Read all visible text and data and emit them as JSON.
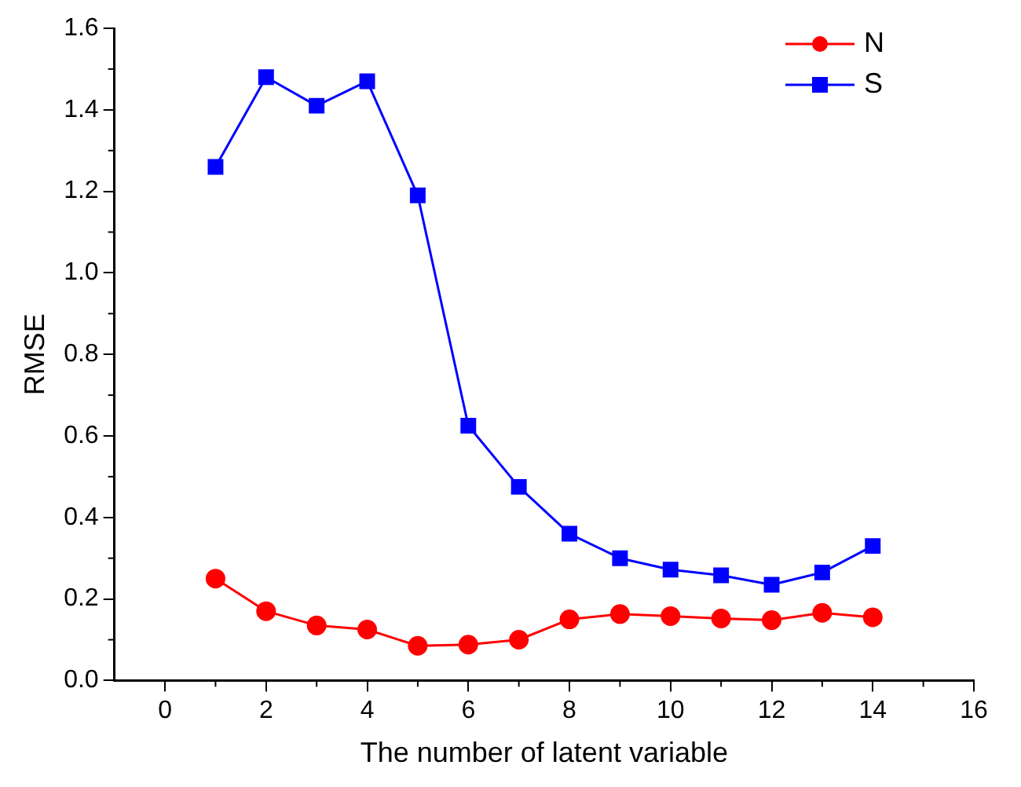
{
  "chart_data": {
    "type": "line",
    "xlabel": "The number of latent variable",
    "ylabel": "RMSE",
    "x": [
      1,
      2,
      3,
      4,
      5,
      6,
      7,
      8,
      9,
      10,
      11,
      12,
      13,
      14
    ],
    "series": [
      {
        "name": "N",
        "color": "#ff0000",
        "marker": "circle",
        "values": [
          0.25,
          0.17,
          0.135,
          0.125,
          0.085,
          0.088,
          0.1,
          0.15,
          0.163,
          0.158,
          0.152,
          0.148,
          0.166,
          0.155
        ]
      },
      {
        "name": "S",
        "color": "#0000ff",
        "marker": "square",
        "values": [
          1.26,
          1.48,
          1.41,
          1.47,
          1.19,
          0.625,
          0.475,
          0.36,
          0.3,
          0.272,
          0.258,
          0.235,
          0.265,
          0.33
        ]
      }
    ],
    "xlim": [
      -1,
      16
    ],
    "xticks": [
      0,
      2,
      4,
      6,
      8,
      10,
      12,
      14,
      16
    ],
    "ylim": [
      0,
      1.6
    ],
    "yticks": [
      {
        "value": 0,
        "label": "0.0"
      },
      0.2,
      0.4,
      0.6,
      0.8,
      {
        "value": 1,
        "label": "1.0"
      },
      1.2,
      1.4,
      1.6
    ],
    "grid": false,
    "legend": "top right",
    "line_style": "solid"
  }
}
